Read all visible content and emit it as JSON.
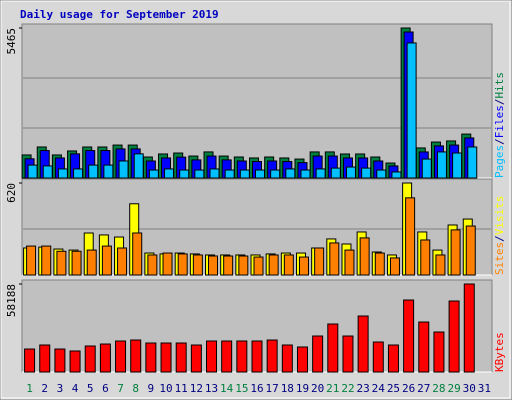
{
  "chart_data": [
    {
      "type": "bar",
      "title": "Daily usage for September 2019",
      "separator": "/",
      "ylim": [
        0,
        5465
      ],
      "yticks": [
        5465
      ],
      "series": [
        {
          "name": "Hits",
          "color": "#008040",
          "values": [
            840,
            1130,
            840,
            985,
            1130,
            1130,
            1200,
            1200,
            765,
            875,
            910,
            800,
            950,
            800,
            765,
            730,
            765,
            730,
            690,
            950,
            950,
            875,
            875,
            765,
            545,
            5465,
            1095,
            1310,
            1350,
            1600,
            0
          ]
        },
        {
          "name": "Files",
          "color": "#0000ff",
          "values": [
            700,
            1000,
            730,
            880,
            1000,
            1000,
            1060,
            1060,
            620,
            730,
            760,
            660,
            800,
            660,
            620,
            600,
            620,
            600,
            560,
            800,
            800,
            730,
            730,
            620,
            440,
            5320,
            950,
            1170,
            1200,
            1460,
            0
          ]
        },
        {
          "name": "Pages",
          "color": "#00c0ff",
          "values": [
            470,
            440,
            330,
            330,
            470,
            470,
            620,
            880,
            290,
            330,
            290,
            290,
            330,
            290,
            290,
            290,
            290,
            330,
            290,
            330,
            360,
            400,
            360,
            290,
            220,
            4920,
            690,
            950,
            910,
            1130,
            0
          ]
        }
      ]
    },
    {
      "type": "bar",
      "separator": "/",
      "ylim": [
        0,
        620
      ],
      "yticks": [
        620
      ],
      "series": [
        {
          "name": "Visits",
          "color": "#ffff00",
          "values": [
            182,
            188,
            175,
            168,
            283,
            270,
            256,
            480,
            148,
            142,
            148,
            142,
            135,
            135,
            135,
            135,
            142,
            148,
            148,
            182,
            243,
            209,
            290,
            155,
            135,
            620,
            290,
            168,
            337,
            377,
            0
          ]
        },
        {
          "name": "Sites",
          "color": "#ff8000",
          "values": [
            195,
            195,
            160,
            160,
            168,
            195,
            182,
            283,
            135,
            148,
            142,
            135,
            128,
            128,
            128,
            121,
            135,
            135,
            121,
            182,
            216,
            168,
            250,
            148,
            115,
            520,
            236,
            135,
            304,
            330,
            0
          ]
        }
      ]
    },
    {
      "type": "bar",
      "ylim": [
        0,
        58188
      ],
      "yticks": [
        58188
      ],
      "categories": [
        "1",
        "2",
        "3",
        "4",
        "5",
        "6",
        "7",
        "8",
        "9",
        "10",
        "11",
        "12",
        "13",
        "14",
        "15",
        "16",
        "17",
        "18",
        "19",
        "20",
        "21",
        "22",
        "23",
        "24",
        "25",
        "26",
        "27",
        "28",
        "29",
        "30",
        "31"
      ],
      "category_colors": [
        "#008040",
        "#000080",
        "#000080",
        "#000080",
        "#000080",
        "#000080",
        "#008040",
        "#008040",
        "#000080",
        "#000080",
        "#000080",
        "#000080",
        "#000080",
        "#008040",
        "#008040",
        "#000080",
        "#000080",
        "#000080",
        "#000080",
        "#000080",
        "#008040",
        "#008040",
        "#000080",
        "#000080",
        "#000080",
        "#000080",
        "#000080",
        "#008040",
        "#008040",
        "#000080",
        "#000080"
      ],
      "series": [
        {
          "name": "KBytes",
          "color": "#ff0000",
          "values": [
            15200,
            17850,
            15200,
            13900,
            17190,
            18500,
            20500,
            21150,
            19170,
            19170,
            19170,
            17850,
            20500,
            20500,
            20500,
            20500,
            21150,
            17850,
            16530,
            23800,
            31730,
            23800,
            37020,
            19830,
            17850,
            47600,
            33050,
            26440,
            46930,
            58188,
            0
          ]
        }
      ]
    }
  ]
}
